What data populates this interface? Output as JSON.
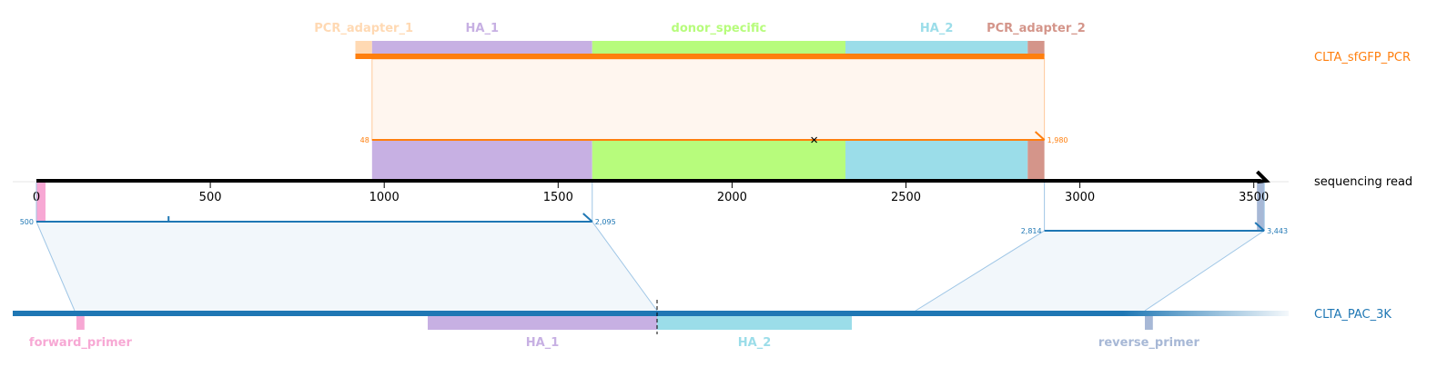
{
  "read": {
    "name": "sequencing read",
    "color": "#000000",
    "length": 3536,
    "ticks": [
      0,
      500,
      1000,
      1500,
      2000,
      2500,
      3000,
      3500
    ]
  },
  "pcr": {
    "name": "CLTA_sfGFP_PCR",
    "color": "#ff7f0e",
    "start": 917,
    "end": 2898,
    "features": [
      {
        "name": "PCR_adapter_1",
        "start": 917,
        "end": 965,
        "color": "#ffd9b3"
      },
      {
        "name": "HA_1",
        "start": 965,
        "end": 1598,
        "color": "#c7b0e3"
      },
      {
        "name": "donor_specific",
        "start": 1598,
        "end": 2326,
        "color": "#b7fc7c"
      },
      {
        "name": "HA_2",
        "start": 2326,
        "end": 2850,
        "color": "#9bdde9"
      },
      {
        "name": "PCR_adapter_2",
        "start": 2850,
        "end": 2898,
        "color": "#d4958a"
      }
    ],
    "alignment": {
      "read_start": 965,
      "read_end": 2898,
      "ref_start_label": "48",
      "ref_end_label": "1,980",
      "mismatch_at": 2236
    }
  },
  "genome": {
    "name": "CLTA_PAC_3K",
    "color": "#1f77b4",
    "features": [
      {
        "name": "forward_primer",
        "start": 175,
        "end": 197,
        "color": "#f7a8d4"
      },
      {
        "name": "HA_1",
        "start": 1140,
        "end": 1770,
        "color": "#c7b0e3"
      },
      {
        "name": "HA_2",
        "start": 1770,
        "end": 2305,
        "color": "#9bdde9"
      },
      {
        "name": "reverse_primer",
        "start": 3110,
        "end": 3132,
        "color": "#a7b8d6"
      }
    ],
    "cut_at": 1770,
    "alignments": [
      {
        "read_start": 0,
        "read_end": 1598,
        "ref_start_label": "500",
        "ref_end_label": "2,095",
        "ref_start": 170,
        "ref_end": 1770
      },
      {
        "read_start": 2898,
        "read_end": 3530,
        "ref_start_label": "2,814",
        "ref_end_label": "3,443",
        "ref_start": 2480,
        "ref_end": 3110
      }
    ]
  }
}
